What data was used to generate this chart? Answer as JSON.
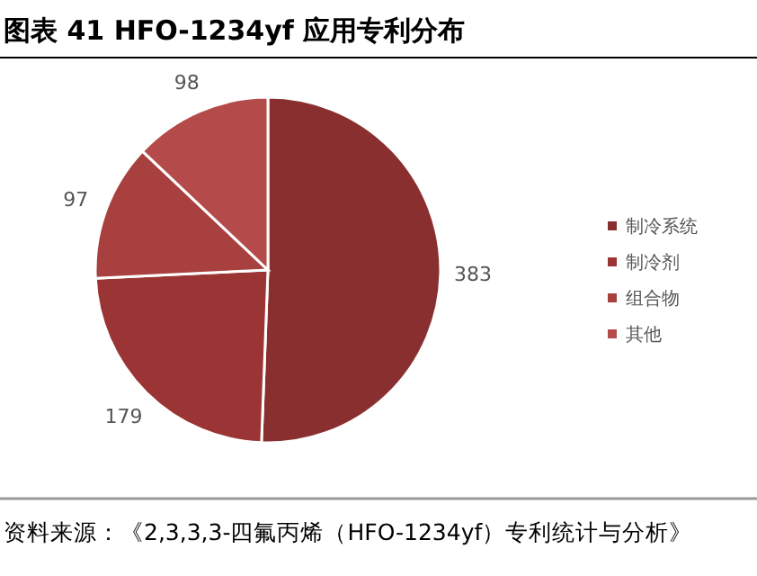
{
  "chart_data": {
    "type": "pie",
    "title": "图表 41 HFO-1234yf 应用专利分布",
    "categories": [
      "制冷系统",
      "制冷剂",
      "组合物",
      "其他"
    ],
    "values": [
      383,
      179,
      97,
      98
    ],
    "colors": [
      "#8a2f2f",
      "#9b3434",
      "#a94040",
      "#b54a4a"
    ],
    "data_labels": true,
    "legend": "right",
    "annotations": [
      "资料来源：《2,3,3,3-四氟丙烯（HFO-1234yf）专利统计与分析》"
    ]
  }
}
